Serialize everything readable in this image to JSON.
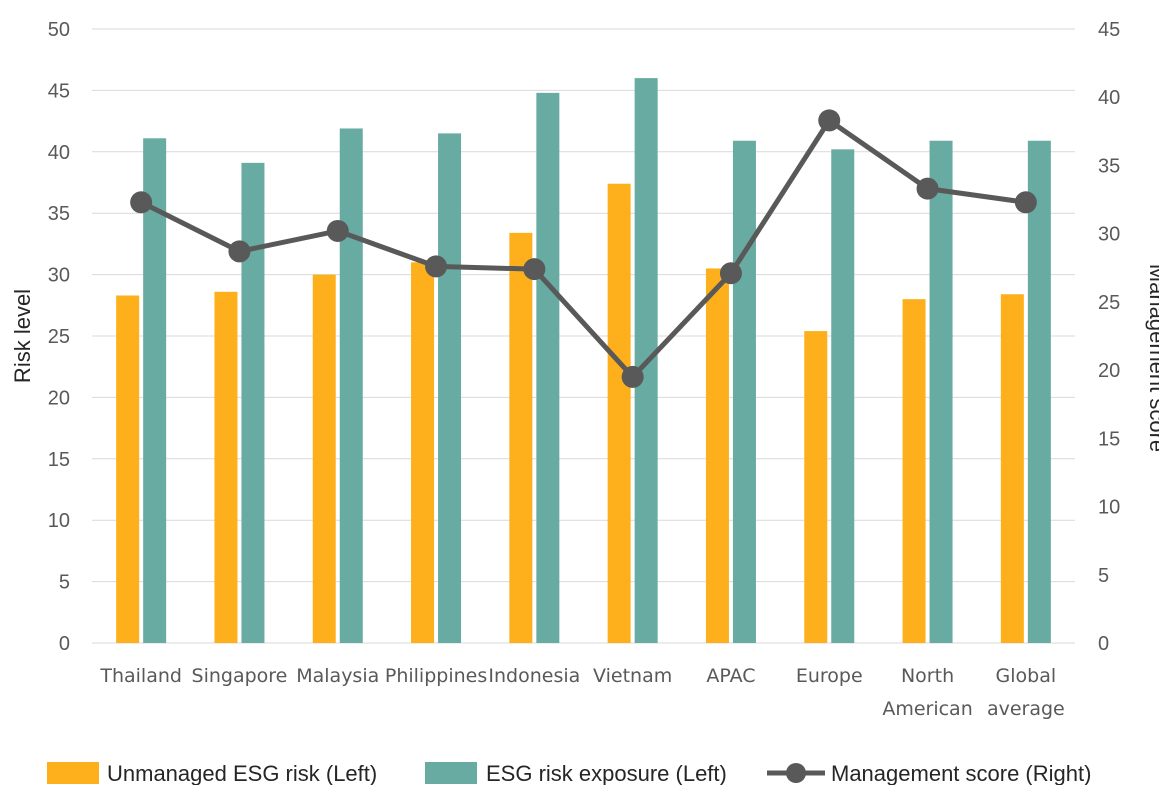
{
  "chart_data": {
    "type": "bar",
    "categories": [
      [
        "Thailand"
      ],
      [
        "Singapore"
      ],
      [
        "Malaysia"
      ],
      [
        "Philippines"
      ],
      [
        "Indonesia"
      ],
      [
        "Vietnam"
      ],
      [
        "APAC"
      ],
      [
        "Europe"
      ],
      [
        "North",
        "American"
      ],
      [
        "Global",
        "average"
      ]
    ],
    "series": [
      {
        "name": "Unmanaged ESG risk (Left)",
        "type": "bar",
        "axis": "left",
        "color": "#fdb01b",
        "values": [
          28.3,
          28.6,
          30.0,
          31.0,
          33.4,
          37.4,
          30.5,
          25.4,
          28.0,
          28.4
        ]
      },
      {
        "name": "ESG risk exposure (Left)",
        "type": "bar",
        "axis": "left",
        "color": "#67aba2",
        "values": [
          41.1,
          39.1,
          41.9,
          41.5,
          44.8,
          46.0,
          40.9,
          40.2,
          40.9,
          40.9
        ]
      },
      {
        "name": "Management score (Right)",
        "type": "line",
        "axis": "right",
        "color": "#595959",
        "values": [
          32.3,
          28.7,
          30.2,
          27.6,
          27.4,
          19.5,
          27.1,
          38.3,
          33.3,
          32.3
        ]
      }
    ],
    "ylabel": "Risk level",
    "y2label": "Management score",
    "ylim": [
      0,
      50
    ],
    "y2lim": [
      0,
      45
    ],
    "yticks": [
      "0",
      "5",
      "10",
      "15",
      "20",
      "25",
      "30",
      "35",
      "40",
      "45",
      "50"
    ],
    "y2ticks": [
      "0",
      "5",
      "10",
      "15",
      "20",
      "25",
      "30",
      "35",
      "40",
      "45"
    ],
    "grid": true,
    "legend_position": "bottom"
  }
}
